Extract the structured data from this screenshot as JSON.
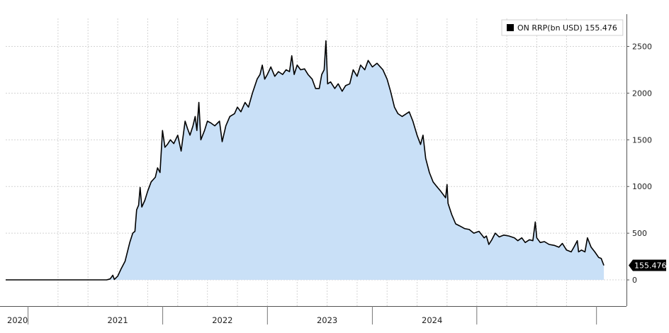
{
  "chart_data": {
    "type": "area",
    "series": [
      {
        "name": "ON RRP(bn USD)",
        "last_value": "155.476",
        "color": "#000000",
        "fill": "#c9e0f7",
        "points": [
          [
            "2020-01-01",
            0
          ],
          [
            "2020-07-01",
            0
          ],
          [
            "2021-01-15",
            0
          ],
          [
            "2021-02-15",
            0
          ],
          [
            "2021-03-01",
            10
          ],
          [
            "2021-03-12",
            50
          ],
          [
            "2021-03-18",
            5
          ],
          [
            "2021-04-01",
            40
          ],
          [
            "2021-04-15",
            120
          ],
          [
            "2021-05-01",
            200
          ],
          [
            "2021-05-20",
            400
          ],
          [
            "2021-06-01",
            500
          ],
          [
            "2021-06-10",
            520
          ],
          [
            "2021-06-17",
            750
          ],
          [
            "2021-06-25",
            800
          ],
          [
            "2021-07-01",
            990
          ],
          [
            "2021-07-08",
            780
          ],
          [
            "2021-07-20",
            850
          ],
          [
            "2021-08-01",
            950
          ],
          [
            "2021-08-15",
            1050
          ],
          [
            "2021-09-01",
            1100
          ],
          [
            "2021-09-10",
            1200
          ],
          [
            "2021-09-20",
            1150
          ],
          [
            "2021-09-30",
            1600
          ],
          [
            "2021-10-10",
            1420
          ],
          [
            "2021-10-20",
            1450
          ],
          [
            "2021-11-01",
            1500
          ],
          [
            "2021-11-15",
            1460
          ],
          [
            "2021-12-01",
            1550
          ],
          [
            "2021-12-15",
            1380
          ],
          [
            "2021-12-31",
            1700
          ],
          [
            "2022-01-10",
            1620
          ],
          [
            "2022-01-20",
            1550
          ],
          [
            "2022-02-01",
            1650
          ],
          [
            "2022-02-10",
            1750
          ],
          [
            "2022-02-17",
            1600
          ],
          [
            "2022-02-25",
            1900
          ],
          [
            "2022-03-05",
            1500
          ],
          [
            "2022-03-20",
            1600
          ],
          [
            "2022-04-01",
            1700
          ],
          [
            "2022-04-15",
            1680
          ],
          [
            "2022-05-01",
            1650
          ],
          [
            "2022-05-20",
            1700
          ],
          [
            "2022-05-31",
            1480
          ],
          [
            "2022-06-15",
            1650
          ],
          [
            "2022-07-01",
            1750
          ],
          [
            "2022-07-20",
            1780
          ],
          [
            "2022-08-01",
            1850
          ],
          [
            "2022-08-15",
            1800
          ],
          [
            "2022-09-01",
            1900
          ],
          [
            "2022-09-15",
            1850
          ],
          [
            "2022-10-01",
            2000
          ],
          [
            "2022-10-20",
            2150
          ],
          [
            "2022-11-01",
            2200
          ],
          [
            "2022-11-10",
            2300
          ],
          [
            "2022-11-20",
            2150
          ],
          [
            "2022-12-01",
            2200
          ],
          [
            "2022-12-15",
            2280
          ],
          [
            "2022-12-31",
            2180
          ],
          [
            "2023-01-15",
            2230
          ],
          [
            "2023-02-01",
            2200
          ],
          [
            "2023-02-15",
            2250
          ],
          [
            "2023-03-01",
            2230
          ],
          [
            "2023-03-10",
            2400
          ],
          [
            "2023-03-20",
            2200
          ],
          [
            "2023-04-01",
            2300
          ],
          [
            "2023-04-15",
            2250
          ],
          [
            "2023-05-01",
            2260
          ],
          [
            "2023-05-15",
            2200
          ],
          [
            "2023-06-01",
            2150
          ],
          [
            "2023-06-15",
            2050
          ],
          [
            "2023-06-30",
            2050
          ],
          [
            "2023-07-10",
            2200
          ],
          [
            "2023-07-20",
            2250
          ],
          [
            "2023-07-27",
            2560
          ],
          [
            "2023-08-03",
            2100
          ],
          [
            "2023-08-15",
            2120
          ],
          [
            "2023-09-01",
            2050
          ],
          [
            "2023-09-15",
            2100
          ],
          [
            "2023-10-01",
            2020
          ],
          [
            "2023-10-15",
            2080
          ],
          [
            "2023-11-01",
            2100
          ],
          [
            "2023-11-15",
            2250
          ],
          [
            "2023-12-01",
            2180
          ],
          [
            "2023-12-15",
            2300
          ],
          [
            "2024-01-01",
            2250
          ],
          [
            "2024-01-15",
            2350
          ],
          [
            "2024-02-01",
            2280
          ],
          [
            "2024-02-20",
            2320
          ],
          [
            "2024-03-15",
            2250
          ],
          [
            "2024-04-01",
            2150
          ],
          [
            "2024-04-15",
            2020
          ],
          [
            "2024-05-01",
            1850
          ],
          [
            "2024-05-15",
            1780
          ],
          [
            "2024-06-01",
            1750
          ],
          [
            "2024-06-30",
            1800
          ],
          [
            "2024-07-15",
            1700
          ],
          [
            "2024-08-01",
            1550
          ],
          [
            "2024-08-15",
            1450
          ],
          [
            "2024-08-25",
            1550
          ],
          [
            "2024-09-05",
            1300
          ],
          [
            "2024-09-20",
            1150
          ],
          [
            "2024-10-05",
            1050
          ],
          [
            "2024-10-20",
            1000
          ],
          [
            "2024-11-05",
            950
          ],
          [
            "2024-11-25",
            880
          ],
          [
            "2024-12-01",
            1020
          ],
          [
            "2024-12-05",
            820
          ],
          [
            "2024-12-20",
            700
          ],
          [
            "2025-01-05",
            600
          ],
          [
            "2025-01-20",
            580
          ],
          [
            "2025-02-10",
            550
          ],
          [
            "2025-03-01",
            540
          ],
          [
            "2025-03-20",
            500
          ],
          [
            "2025-04-10",
            520
          ],
          [
            "2025-05-01",
            450
          ],
          [
            "2025-05-10",
            470
          ],
          [
            "2025-05-20",
            380
          ],
          [
            "2025-06-01",
            430
          ],
          [
            "2025-06-15",
            500
          ],
          [
            "2025-07-01",
            460
          ],
          [
            "2025-07-20",
            480
          ],
          [
            "2025-08-10",
            470
          ],
          [
            "2025-09-01",
            450
          ],
          [
            "2025-09-15",
            420
          ],
          [
            "2025-10-01",
            450
          ],
          [
            "2025-10-15",
            400
          ],
          [
            "2025-11-01",
            430
          ],
          [
            "2025-11-15",
            420
          ],
          [
            "2025-11-25",
            620
          ],
          [
            "2025-12-01",
            450
          ],
          [
            "2025-12-15",
            400
          ],
          [
            "2026-01-01",
            410
          ],
          [
            "2026-01-20",
            380
          ],
          [
            "2026-02-10",
            370
          ],
          [
            "2026-03-01",
            350
          ],
          [
            "2026-03-15",
            390
          ],
          [
            "2026-04-01",
            320
          ],
          [
            "2026-04-20",
            300
          ],
          [
            "2026-05-01",
            350
          ],
          [
            "2026-05-15",
            420
          ],
          [
            "2026-05-20",
            300
          ],
          [
            "2026-06-01",
            320
          ],
          [
            "2026-06-15",
            300
          ],
          [
            "2026-06-25",
            450
          ],
          [
            "2026-07-10",
            350
          ],
          [
            "2026-07-25",
            300
          ],
          [
            "2026-08-10",
            240
          ],
          [
            "2026-08-20",
            230
          ],
          [
            "2026-08-31",
            155.476
          ]
        ]
      }
    ],
    "y_ticks": [
      0,
      500,
      1000,
      1500,
      2000,
      2500
    ],
    "y_tick_labels": [
      "0",
      "500",
      "1000",
      "1500",
      "2000",
      "2500"
    ],
    "ylim": [
      -250,
      2800
    ],
    "x_domain": [
      "2020-01-01",
      "2026-12-01"
    ],
    "x_year_labels": [
      {
        "label": "2020",
        "date": "2020-01-01"
      },
      {
        "label": "2021",
        "date": "2021-04-01"
      },
      {
        "label": "2022",
        "date": "2022-06-01"
      },
      {
        "label": "2023",
        "date": "2023-08-01"
      },
      {
        "label": "2024",
        "date": "2024-10-01"
      }
    ],
    "x_separators": [
      "2020-04-01",
      "2021-10-01",
      "2022-12-01",
      "2024-02-01",
      "2025-04-01",
      "2026-08-01"
    ],
    "x_gridlines": [
      "2020-08-01",
      "2020-12-01",
      "2021-04-01",
      "2021-08-01",
      "2021-12-01",
      "2022-04-01",
      "2022-08-01",
      "2022-12-01",
      "2023-04-01",
      "2023-08-01",
      "2023-12-01",
      "2024-04-01",
      "2024-08-01",
      "2024-12-01",
      "2025-04-01",
      "2025-08-01",
      "2025-12-01",
      "2026-04-01"
    ],
    "y_axis_position": "right",
    "legend_position": "top-right",
    "grid": true,
    "last_value_label": "155.476"
  }
}
